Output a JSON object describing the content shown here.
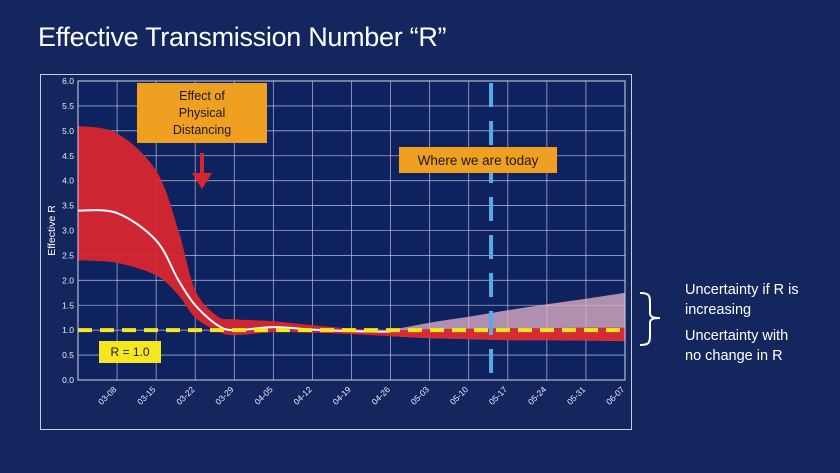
{
  "page_title": "Effective Transmission Number “R”",
  "notes": {
    "increasing_line1": "Uncertainty if R is",
    "increasing_line2": "increasing",
    "nochange_line1": "Uncertainty with",
    "nochange_line2": "no change in R"
  },
  "colors": {
    "background": "#14265e",
    "band": "#d8262e",
    "median_line": "#ffffff",
    "threshold_line": "#f5e71f",
    "today_line": "#5aa8e8",
    "callout": "#f0a020",
    "increase_band": "#e7b6c8"
  },
  "chart_data": {
    "type": "area",
    "ylabel": "Effective R",
    "xlabel": "",
    "ylim": [
      0,
      6
    ],
    "yticks": [
      "0.0",
      "0.5",
      "1.0",
      "1.5",
      "2.0",
      "2.5",
      "3.0",
      "3.5",
      "4.0",
      "4.5",
      "5.0",
      "5.5",
      "6.0"
    ],
    "x_categories": [
      "03-08",
      "03-15",
      "03-22",
      "03-29",
      "04-05",
      "04-12",
      "04-19",
      "04-26",
      "05-03",
      "05-10",
      "05-17",
      "05-24",
      "05-31",
      "06-07"
    ],
    "x_start": "03-01",
    "grid": true,
    "series": [
      {
        "name": "Median estimate",
        "x": [
          "03-01",
          "03-08",
          "03-15",
          "03-19",
          "03-22",
          "03-26",
          "03-29",
          "04-05",
          "04-12",
          "04-19",
          "04-26"
        ],
        "y": [
          3.4,
          3.35,
          2.8,
          2.0,
          1.5,
          1.1,
          1.0,
          1.06,
          1.01,
          0.98,
          0.97
        ]
      },
      {
        "name": "Upper bound",
        "x": [
          "03-01",
          "03-08",
          "03-15",
          "03-19",
          "03-22",
          "03-26",
          "03-29",
          "04-05",
          "04-12",
          "04-19",
          "04-26",
          "05-03",
          "05-10",
          "05-17",
          "05-24",
          "05-31",
          "06-07"
        ],
        "y": [
          5.1,
          4.95,
          4.2,
          3.0,
          1.8,
          1.28,
          1.22,
          1.18,
          1.1,
          1.03,
          1.0,
          1.02,
          1.03,
          1.04,
          1.04,
          1.05,
          1.05
        ]
      },
      {
        "name": "Lower bound",
        "x": [
          "03-01",
          "03-08",
          "03-15",
          "03-19",
          "03-22",
          "03-26",
          "03-29",
          "04-05",
          "04-12",
          "04-19",
          "04-26",
          "05-03",
          "05-10",
          "05-17",
          "05-24",
          "05-31",
          "06-07"
        ],
        "y": [
          2.4,
          2.35,
          2.1,
          1.7,
          1.25,
          0.98,
          0.9,
          0.96,
          0.95,
          0.92,
          0.88,
          0.84,
          0.82,
          0.8,
          0.8,
          0.79,
          0.78
        ]
      },
      {
        "name": "Increasing scenario upper bound",
        "x": [
          "04-26",
          "05-03",
          "05-10",
          "05-17",
          "05-24",
          "05-31",
          "06-07"
        ],
        "y": [
          1.0,
          1.15,
          1.27,
          1.4,
          1.52,
          1.63,
          1.75
        ]
      }
    ],
    "threshold": {
      "value": 1.0,
      "label": "R = 1.0"
    },
    "today_marker": {
      "x": "05-14",
      "label": "Where we are today"
    },
    "annotations": [
      {
        "lines": [
          "Effect of",
          "Physical",
          "Distancing"
        ],
        "x": "03-22"
      }
    ]
  }
}
